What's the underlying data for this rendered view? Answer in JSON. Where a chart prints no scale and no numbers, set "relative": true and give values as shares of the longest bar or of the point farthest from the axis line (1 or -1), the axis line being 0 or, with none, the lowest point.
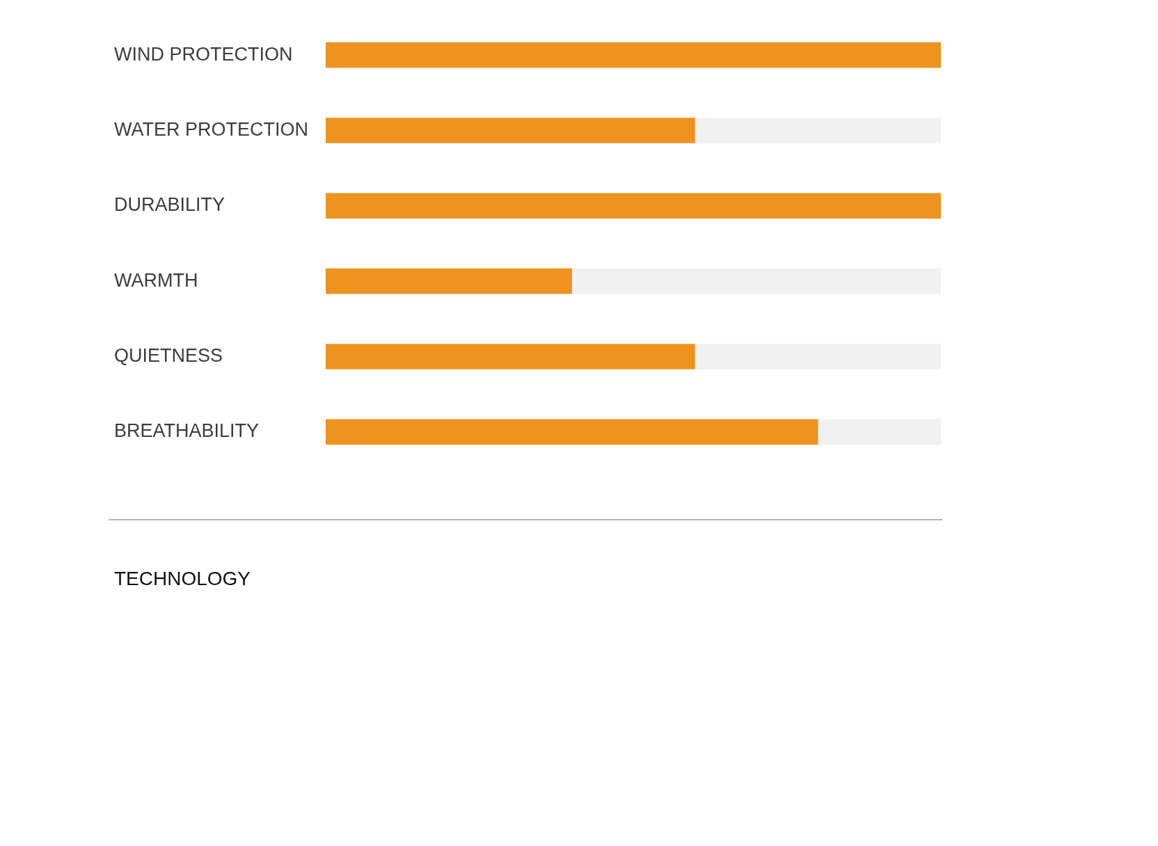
{
  "chart_data": {
    "type": "bar",
    "orientation": "horizontal",
    "relative": true,
    "stacked": true,
    "categories": [
      "WIND PROTECTION",
      "WATER PROTECTION",
      "DURABILITY",
      "WARMTH",
      "QUIETNESS",
      "BREATHABILITY"
    ],
    "series": [
      {
        "color": "#ee9320",
        "values": [
          1,
          0.6,
          1,
          0.4,
          0.6,
          0.8
        ]
      },
      {
        "color": "#f1f1f1",
        "values": [
          null,
          0.4,
          null,
          0.6,
          0.4,
          0.2
        ]
      }
    ],
    "annotations": [
      "TECHNOLOGY"
    ]
  }
}
